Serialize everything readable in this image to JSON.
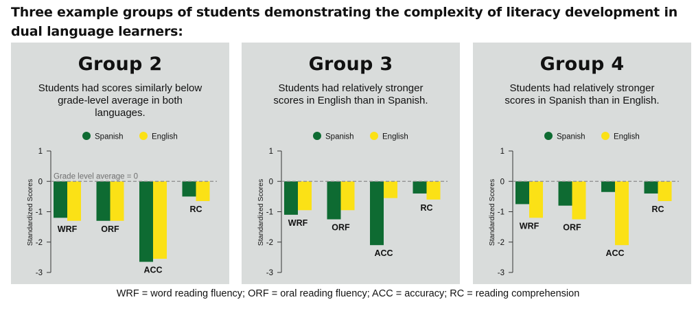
{
  "title": "Three example groups of students demonstrating the complexity of literacy development in dual language learners:",
  "footnote": "WRF = word reading fluency; ORF = oral reading fluency; ACC = accuracy; RC = reading comprehension",
  "colors": {
    "spanish": "#0e6b32",
    "english": "#fbe116",
    "panel_bg": "#d9dcdb",
    "axis": "#333333",
    "grid_dash": "#8a8a8a"
  },
  "chart_data": [
    {
      "type": "bar",
      "title": "Group 2",
      "subtitle": "Students had scores similarly below grade-level average in both languages.",
      "ylabel": "Standardized Scores",
      "annotation": "Grade level average = 0",
      "categories": [
        "WRF",
        "ORF",
        "ACC",
        "RC"
      ],
      "series": [
        {
          "name": "Spanish",
          "values": [
            -1.2,
            -1.3,
            -2.65,
            -0.5
          ]
        },
        {
          "name": "English",
          "values": [
            -1.3,
            -1.3,
            -2.55,
            -0.65
          ]
        }
      ],
      "ylim": [
        -3,
        1
      ],
      "yticks": [
        "1",
        "0",
        "-1",
        "-2",
        "-3"
      ],
      "legend": "top",
      "grid": false
    },
    {
      "type": "bar",
      "title": "Group 3",
      "subtitle": "Students had relatively stronger scores in English than in Spanish.",
      "ylabel": "Standardized Scores",
      "categories": [
        "WRF",
        "ORF",
        "ACC",
        "RC"
      ],
      "series": [
        {
          "name": "Spanish",
          "values": [
            -1.1,
            -1.25,
            -2.1,
            -0.4
          ]
        },
        {
          "name": "English",
          "values": [
            -0.95,
            -0.95,
            -0.55,
            -0.6
          ]
        }
      ],
      "ylim": [
        -3,
        1
      ],
      "yticks": [
        "1",
        "0",
        "-1",
        "-2",
        "-3"
      ],
      "legend": "top",
      "grid": false
    },
    {
      "type": "bar",
      "title": "Group 4",
      "subtitle": "Students had relatively stronger scores in Spanish than in English.",
      "ylabel": "Standardized Scores",
      "categories": [
        "WRF",
        "ORF",
        "ACC",
        "RC"
      ],
      "series": [
        {
          "name": "Spanish",
          "values": [
            -0.75,
            -0.8,
            -0.35,
            -0.4
          ]
        },
        {
          "name": "English",
          "values": [
            -1.2,
            -1.25,
            -2.1,
            -0.65
          ]
        }
      ],
      "ylim": [
        -3,
        1
      ],
      "yticks": [
        "1",
        "0",
        "-1",
        "-2",
        "-3"
      ],
      "legend": "top",
      "grid": false
    }
  ]
}
